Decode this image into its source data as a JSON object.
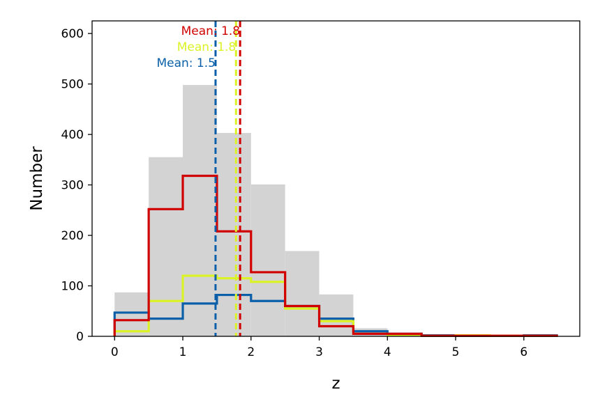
{
  "chart_data": {
    "type": "histogram",
    "title": "",
    "xlabel": "z",
    "ylabel": "Number",
    "xlim": [
      -0.33,
      6.82
    ],
    "ylim": [
      0,
      625
    ],
    "xticks": [
      0,
      1,
      2,
      3,
      4,
      5,
      6
    ],
    "yticks": [
      0,
      100,
      200,
      300,
      400,
      500,
      600
    ],
    "bin_edges": [
      0,
      0.5,
      1,
      1.5,
      2,
      2.5,
      3,
      3.5,
      4,
      4.5,
      5,
      5.5,
      6,
      6.5
    ],
    "grid": false,
    "legend": "none",
    "series": [
      {
        "style": "filled",
        "color": "#d3d3d3",
        "values": [
          87,
          355,
          498,
          403,
          301,
          169,
          83,
          16,
          5,
          2,
          1,
          1,
          1
        ]
      },
      {
        "style": "step",
        "color": "#0a5fa8",
        "values": [
          47,
          35,
          65,
          82,
          70,
          60,
          35,
          10,
          5,
          2,
          1,
          1,
          2
        ]
      },
      {
        "style": "step",
        "color": "#dbf227",
        "values": [
          10,
          70,
          120,
          115,
          108,
          55,
          30,
          5,
          2,
          1,
          2,
          1,
          1
        ]
      },
      {
        "style": "step",
        "color": "#d10000",
        "values": [
          32,
          252,
          318,
          208,
          127,
          60,
          20,
          5,
          5,
          1,
          1,
          1,
          1
        ]
      }
    ],
    "mean_lines": [
      {
        "x": 1.48,
        "label": "Mean: 1.5",
        "color": "#0a5fa8"
      },
      {
        "x": 1.78,
        "label": "Mean: 1.8",
        "color": "#dbf227"
      },
      {
        "x": 1.84,
        "label": "Mean: 1.8",
        "color": "#d10000"
      }
    ]
  }
}
